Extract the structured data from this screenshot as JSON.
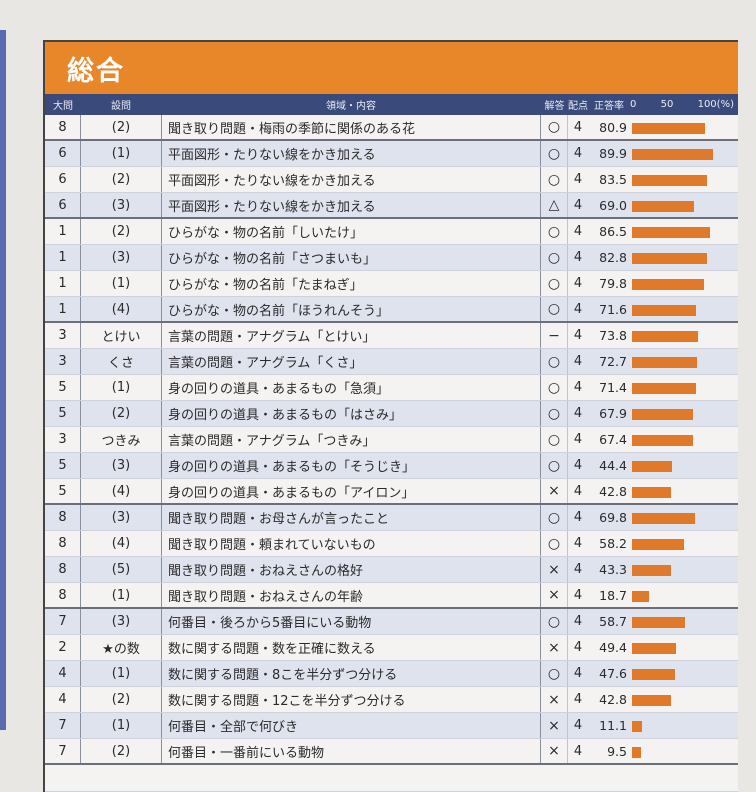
{
  "title": "総合",
  "headers": {
    "big": "大問",
    "small": "設問",
    "field": "領域・内容",
    "eval": "解答",
    "points": "配点",
    "rate": "正答率",
    "scale": [
      "0",
      "50",
      "100(%)"
    ]
  },
  "accent_color": "#e8862a",
  "header_color": "#3a4a7a",
  "rows": [
    {
      "big": "8",
      "small": "(2)",
      "content": "聞き取り問題・梅雨の季節に関係のある花",
      "mark": "○",
      "points": "4",
      "rate": 80.9,
      "rate_text": "80.9",
      "group_end": true
    },
    {
      "big": "6",
      "small": "(1)",
      "content": "平面図形・たりない線をかき加える",
      "mark": "○",
      "points": "4",
      "rate": 89.9,
      "rate_text": "89.9",
      "group_end": false
    },
    {
      "big": "6",
      "small": "(2)",
      "content": "平面図形・たりない線をかき加える",
      "mark": "○",
      "points": "4",
      "rate": 83.5,
      "rate_text": "83.5",
      "group_end": false
    },
    {
      "big": "6",
      "small": "(3)",
      "content": "平面図形・たりない線をかき加える",
      "mark": "△",
      "points": "4",
      "rate": 69.0,
      "rate_text": "69.0",
      "group_end": true
    },
    {
      "big": "1",
      "small": "(2)",
      "content": "ひらがな・物の名前「しいたけ」",
      "mark": "○",
      "points": "4",
      "rate": 86.5,
      "rate_text": "86.5",
      "group_end": false
    },
    {
      "big": "1",
      "small": "(3)",
      "content": "ひらがな・物の名前「さつまいも」",
      "mark": "○",
      "points": "4",
      "rate": 82.8,
      "rate_text": "82.8",
      "group_end": false
    },
    {
      "big": "1",
      "small": "(1)",
      "content": "ひらがな・物の名前「たまねぎ」",
      "mark": "○",
      "points": "4",
      "rate": 79.8,
      "rate_text": "79.8",
      "group_end": false
    },
    {
      "big": "1",
      "small": "(4)",
      "content": "ひらがな・物の名前「ほうれんそう」",
      "mark": "○",
      "points": "4",
      "rate": 71.6,
      "rate_text": "71.6",
      "group_end": true
    },
    {
      "big": "3",
      "small": "とけい",
      "content": "言葉の問題・アナグラム「とけい」",
      "mark": "−",
      "points": "4",
      "rate": 73.8,
      "rate_text": "73.8",
      "group_end": false
    },
    {
      "big": "3",
      "small": "くさ",
      "content": "言葉の問題・アナグラム「くさ」",
      "mark": "○",
      "points": "4",
      "rate": 72.7,
      "rate_text": "72.7",
      "group_end": false
    },
    {
      "big": "5",
      "small": "(1)",
      "content": "身の回りの道具・あまるもの「急須」",
      "mark": "○",
      "points": "4",
      "rate": 71.4,
      "rate_text": "71.4",
      "group_end": false
    },
    {
      "big": "5",
      "small": "(2)",
      "content": "身の回りの道具・あまるもの「はさみ」",
      "mark": "○",
      "points": "4",
      "rate": 67.9,
      "rate_text": "67.9",
      "group_end": false
    },
    {
      "big": "3",
      "small": "つきみ",
      "content": "言葉の問題・アナグラム「つきみ」",
      "mark": "○",
      "points": "4",
      "rate": 67.4,
      "rate_text": "67.4",
      "group_end": false
    },
    {
      "big": "5",
      "small": "(3)",
      "content": "身の回りの道具・あまるもの「そうじき」",
      "mark": "○",
      "points": "4",
      "rate": 44.4,
      "rate_text": "44.4",
      "group_end": false
    },
    {
      "big": "5",
      "small": "(4)",
      "content": "身の回りの道具・あまるもの「アイロン」",
      "mark": "×",
      "points": "4",
      "rate": 42.8,
      "rate_text": "42.8",
      "group_end": true
    },
    {
      "big": "8",
      "small": "(3)",
      "content": "聞き取り問題・お母さんが言ったこと",
      "mark": "○",
      "points": "4",
      "rate": 69.8,
      "rate_text": "69.8",
      "group_end": false
    },
    {
      "big": "8",
      "small": "(4)",
      "content": "聞き取り問題・頼まれていないもの",
      "mark": "○",
      "points": "4",
      "rate": 58.2,
      "rate_text": "58.2",
      "group_end": false
    },
    {
      "big": "8",
      "small": "(5)",
      "content": "聞き取り問題・おねえさんの格好",
      "mark": "×",
      "points": "4",
      "rate": 43.3,
      "rate_text": "43.3",
      "group_end": false
    },
    {
      "big": "8",
      "small": "(1)",
      "content": "聞き取り問題・おねえさんの年齢",
      "mark": "×",
      "points": "4",
      "rate": 18.7,
      "rate_text": "18.7",
      "group_end": true
    },
    {
      "big": "7",
      "small": "(3)",
      "content": "何番目・後ろから5番目にいる動物",
      "mark": "○",
      "points": "4",
      "rate": 58.7,
      "rate_text": "58.7",
      "group_end": false
    },
    {
      "big": "2",
      "small": "★の数",
      "content": "数に関する問題・数を正確に数える",
      "mark": "×",
      "points": "4",
      "rate": 49.4,
      "rate_text": "49.4",
      "group_end": false
    },
    {
      "big": "4",
      "small": "(1)",
      "content": "数に関する問題・8こを半分ずつ分ける",
      "mark": "○",
      "points": "4",
      "rate": 47.6,
      "rate_text": "47.6",
      "group_end": false
    },
    {
      "big": "4",
      "small": "(2)",
      "content": "数に関する問題・12こを半分ずつ分ける",
      "mark": "×",
      "points": "4",
      "rate": 42.8,
      "rate_text": "42.8",
      "group_end": false
    },
    {
      "big": "7",
      "small": "(1)",
      "content": "何番目・全部で何びき",
      "mark": "×",
      "points": "4",
      "rate": 11.1,
      "rate_text": "11.1",
      "group_end": false
    },
    {
      "big": "7",
      "small": "(2)",
      "content": "何番目・一番前にいる動物",
      "mark": "×",
      "points": "4",
      "rate": 9.5,
      "rate_text": "9.5",
      "group_end": true
    }
  ]
}
